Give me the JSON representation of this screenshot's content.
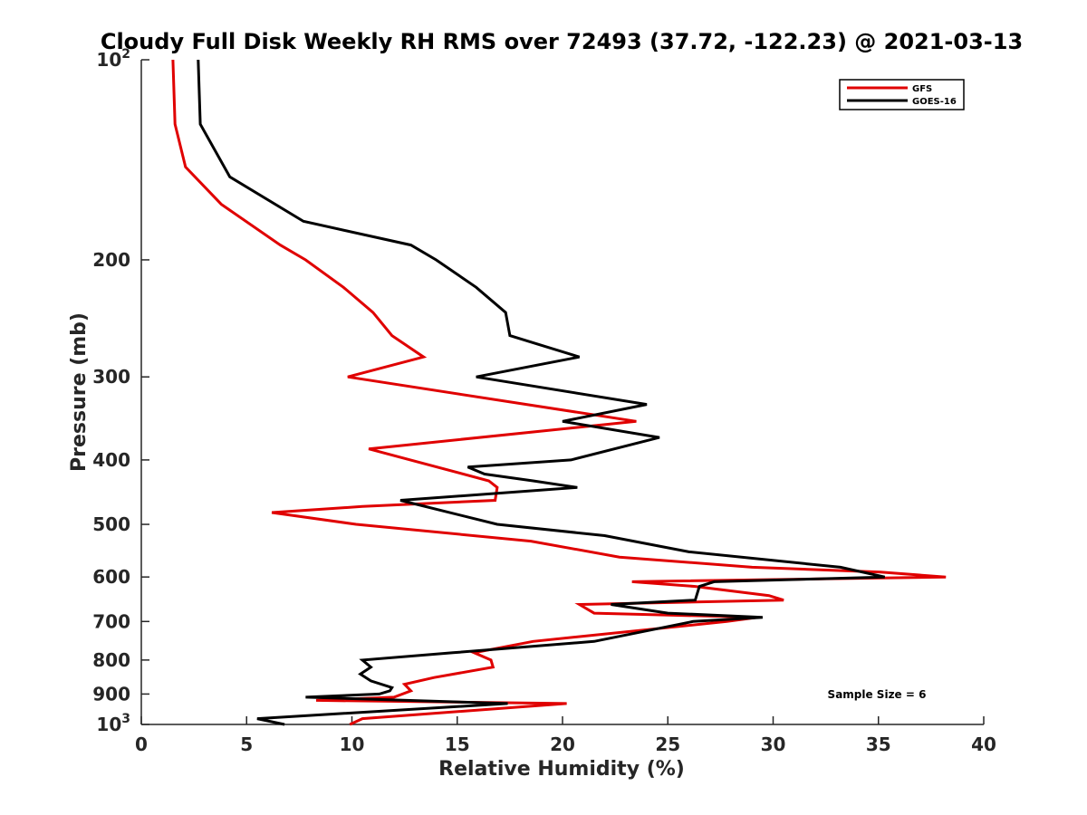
{
  "chart_data": {
    "type": "line",
    "title": "Cloudy Full Disk Weekly RH RMS over 72493 (37.72, -122.23) @ 2021-03-13",
    "xlabel": "Relative Humidity (%)",
    "ylabel": "Pressure (mb)",
    "xlim": [
      0,
      40
    ],
    "ylim": [
      100,
      1000
    ],
    "yscale": "log",
    "y_reversed": true,
    "grid": false,
    "legend_position": "top-right",
    "x_ticks": [
      "0",
      "5",
      "10",
      "15",
      "20",
      "25",
      "30",
      "35",
      "40"
    ],
    "y_ticks": [
      {
        "value": 100,
        "base": "10",
        "exp": "2"
      },
      {
        "value": 200,
        "label": "200"
      },
      {
        "value": 300,
        "label": "300"
      },
      {
        "value": 400,
        "label": "400"
      },
      {
        "value": 500,
        "label": "500"
      },
      {
        "value": 600,
        "label": "600"
      },
      {
        "value": 700,
        "label": "700"
      },
      {
        "value": 800,
        "label": "800"
      },
      {
        "value": 900,
        "label": "900"
      },
      {
        "value": 1000,
        "base": "10",
        "exp": "3"
      }
    ],
    "annotation": "Sample Size = 6",
    "series": [
      {
        "name": "GFS",
        "color": "#e00000",
        "points": [
          [
            1.5,
            100
          ],
          [
            1.6,
            125
          ],
          [
            2.1,
            145
          ],
          [
            3.8,
            165
          ],
          [
            6.6,
            190
          ],
          [
            7.8,
            200
          ],
          [
            9.6,
            220
          ],
          [
            11.0,
            240
          ],
          [
            11.9,
            260
          ],
          [
            13.4,
            280
          ],
          [
            9.8,
            300
          ],
          [
            23.5,
            350
          ],
          [
            10.8,
            385
          ],
          [
            16.5,
            430
          ],
          [
            16.9,
            440
          ],
          [
            16.8,
            460
          ],
          [
            10.5,
            470
          ],
          [
            6.2,
            480
          ],
          [
            10.2,
            500
          ],
          [
            18.5,
            530
          ],
          [
            22.7,
            560
          ],
          [
            29.0,
            580
          ],
          [
            35.1,
            590
          ],
          [
            38.2,
            600
          ],
          [
            23.3,
            610
          ],
          [
            26.3,
            620
          ],
          [
            29.8,
            640
          ],
          [
            30.5,
            650
          ],
          [
            20.8,
            660
          ],
          [
            21.5,
            680
          ],
          [
            29.3,
            690
          ],
          [
            27.8,
            700
          ],
          [
            18.6,
            750
          ],
          [
            15.8,
            780
          ],
          [
            16.6,
            800
          ],
          [
            16.7,
            820
          ],
          [
            13.9,
            850
          ],
          [
            12.5,
            870
          ],
          [
            12.8,
            890
          ],
          [
            12.0,
            910
          ],
          [
            8.3,
            920
          ],
          [
            20.2,
            930
          ],
          [
            10.5,
            980
          ],
          [
            9.9,
            1000
          ]
        ]
      },
      {
        "name": "GOES-16",
        "color": "#000000",
        "points": [
          [
            2.7,
            100
          ],
          [
            2.8,
            125
          ],
          [
            4.2,
            150
          ],
          [
            7.7,
            175
          ],
          [
            12.8,
            190
          ],
          [
            14.0,
            200
          ],
          [
            15.9,
            220
          ],
          [
            17.3,
            240
          ],
          [
            17.5,
            260
          ],
          [
            20.8,
            280
          ],
          [
            15.9,
            300
          ],
          [
            24.0,
            330
          ],
          [
            20.0,
            350
          ],
          [
            24.6,
            370
          ],
          [
            20.4,
            400
          ],
          [
            15.5,
            410
          ],
          [
            16.3,
            420
          ],
          [
            18.6,
            430
          ],
          [
            20.7,
            440
          ],
          [
            12.3,
            460
          ],
          [
            16.9,
            500
          ],
          [
            22.0,
            520
          ],
          [
            26.0,
            550
          ],
          [
            33.2,
            580
          ],
          [
            35.3,
            600
          ],
          [
            27.2,
            610
          ],
          [
            26.5,
            620
          ],
          [
            26.3,
            650
          ],
          [
            22.3,
            660
          ],
          [
            25.0,
            680
          ],
          [
            29.5,
            690
          ],
          [
            26.2,
            700
          ],
          [
            21.5,
            750
          ],
          [
            14.8,
            780
          ],
          [
            10.5,
            800
          ],
          [
            10.9,
            820
          ],
          [
            10.4,
            840
          ],
          [
            10.9,
            860
          ],
          [
            11.9,
            880
          ],
          [
            11.8,
            890
          ],
          [
            11.3,
            900
          ],
          [
            7.8,
            910
          ],
          [
            17.4,
            930
          ],
          [
            5.5,
            980
          ],
          [
            6.8,
            1000
          ]
        ]
      }
    ]
  }
}
